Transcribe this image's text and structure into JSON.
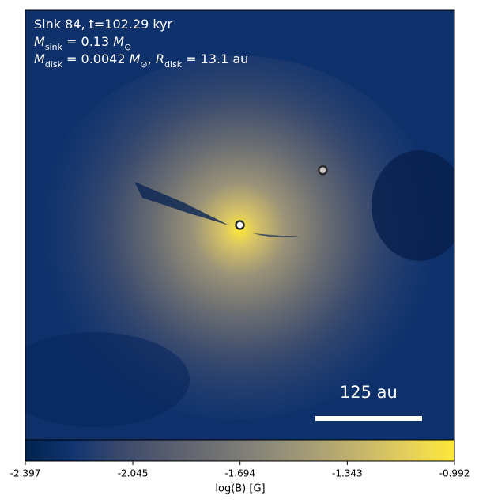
{
  "chart_data": {
    "type": "image",
    "annotations": [
      [
        {
          "text": "Sink 84, t=102.29 kyr"
        }
      ],
      [
        {
          "text": "M",
          "style": "italic"
        },
        {
          "text": "sink",
          "sub": true
        },
        {
          "text": " = 0.13 "
        },
        {
          "text": "M",
          "style": "italic"
        },
        {
          "text": "⊙",
          "sub": true
        }
      ],
      [
        {
          "text": "M",
          "style": "italic"
        },
        {
          "text": "disk",
          "sub": true
        },
        {
          "text": " = 0.0042 "
        },
        {
          "text": "M",
          "style": "italic"
        },
        {
          "text": "⊙",
          "sub": true
        },
        {
          "text": ", "
        },
        {
          "text": "R",
          "style": "italic"
        },
        {
          "text": "disk",
          "sub": true
        },
        {
          "text": " = 13.1 au"
        }
      ]
    ],
    "sinks": {
      "x": [
        0,
        97
      ],
      "y": [
        0,
        64
      ],
      "colors": [
        "#ffffff",
        "#c8c8c8"
      ]
    },
    "xlim": [
      -251,
      251
    ],
    "ylim": [
      -251,
      251
    ],
    "scale_bar": {
      "value": 125,
      "label": "125 au"
    },
    "colorbar": {
      "label": "log(B) [G]",
      "lim": [
        -2.397,
        -0.992
      ],
      "ticks": [
        -2.397,
        -2.045,
        -1.694,
        -1.343,
        -0.992
      ],
      "colormap": [
        "#00224e",
        "#123570",
        "#3b496c",
        "#575d6d",
        "#707173",
        "#8a8779",
        "#a69d75",
        "#c4b56c",
        "#e4cf5b",
        "#fee838"
      ]
    }
  }
}
